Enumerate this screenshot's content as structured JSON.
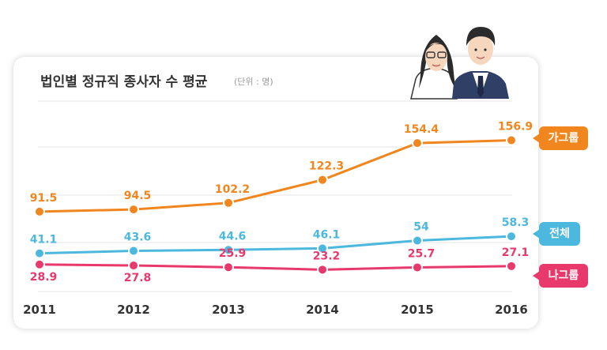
{
  "header": {
    "title": "법인별 정규직 종사자 수 평균",
    "unit": "(단위 : 명)"
  },
  "colors": {
    "group_a": "#f0861d",
    "total": "#4cb8de",
    "group_b": "#e8386c"
  },
  "icons": [
    "woman-with-glasses-icon",
    "man-in-suit-icon"
  ],
  "chart_data": {
    "type": "line",
    "title": "법인별 정규직 종사자 수 평균",
    "unit": "(단위 : 명)",
    "categories": [
      "2011",
      "2012",
      "2013",
      "2014",
      "2015",
      "2016"
    ],
    "series": [
      {
        "name": "가그룹",
        "color": "#f0861d",
        "values": [
          91.5,
          94.5,
          102.2,
          122.3,
          154.4,
          156.9
        ],
        "labels": [
          "91.5",
          "94.5",
          "102.2",
          "122.3",
          "154.4",
          "156.9"
        ]
      },
      {
        "name": "전체",
        "color": "#4cb8de",
        "values": [
          41.1,
          43.6,
          44.6,
          46.1,
          54,
          58.3
        ],
        "labels": [
          "41.1",
          "43.6",
          "44.6",
          "46.1",
          "54",
          "58.3"
        ]
      },
      {
        "name": "나그룹",
        "color": "#e8386c",
        "values": [
          28.9,
          27.8,
          25.9,
          23.2,
          25.7,
          27.1
        ],
        "labels": [
          "28.9",
          "27.8",
          "25.9",
          "23.2",
          "25.7",
          "27.1"
        ]
      }
    ],
    "grid": true,
    "legend": "right"
  }
}
